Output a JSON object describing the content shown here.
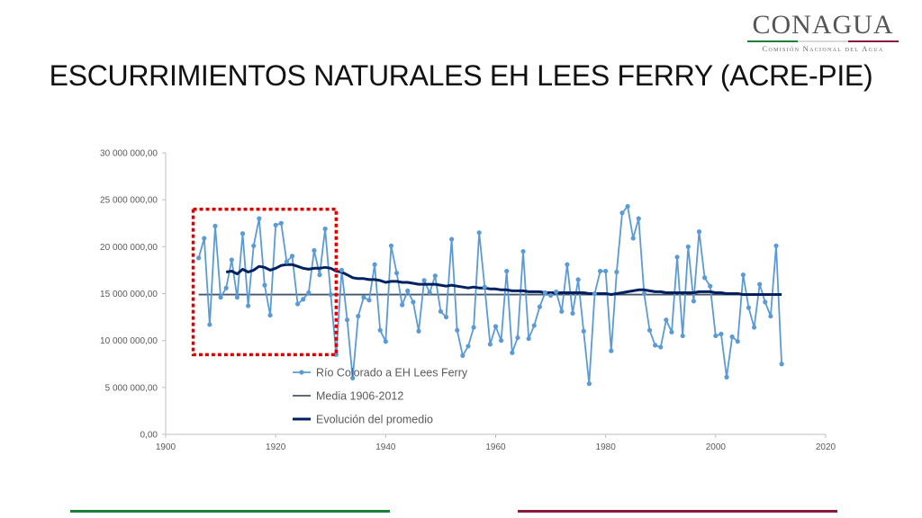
{
  "header": {
    "logo_text": "CONAGUA",
    "logo_subtitle": "Comisión Nacional del Agua",
    "title": "ESCURRIMIENTOS NATURALES EH LEES FERRY (ACRE-PIE)"
  },
  "colors": {
    "series_light": "#5b9bd5",
    "series_mean": "#44546a",
    "series_running": "#002060",
    "highlight_box": "#e00000",
    "green_accent": "#1e7d3b",
    "maroon_accent": "#8b1a3a"
  },
  "chart_data": {
    "type": "line",
    "xlim": [
      1900,
      2020
    ],
    "ylim": [
      0,
      30000000
    ],
    "x_ticks": [
      1900,
      1920,
      1940,
      1960,
      1980,
      2000,
      2020
    ],
    "x_tick_labels": [
      "1900",
      "1920",
      "1940",
      "1960",
      "1980",
      "2000",
      "2020"
    ],
    "y_ticks": [
      0,
      5000000,
      10000000,
      15000000,
      20000000,
      25000000,
      30000000
    ],
    "y_tick_labels": [
      "0,00",
      "5 000 000,00",
      "10 000 000,00",
      "15 000 000,00",
      "20 000 000,00",
      "25 000 000,00",
      "30 000 000,00"
    ],
    "grid": false,
    "legend_position": "inside-bottom-center",
    "highlight": {
      "x_range": [
        1905,
        1931
      ],
      "y_range": [
        8500000,
        24000000
      ],
      "style": "dotted-red-box"
    },
    "series": [
      {
        "name": "Río Colorado a EH Lees Ferry",
        "style": "line-markers",
        "x": [
          1906,
          1907,
          1908,
          1909,
          1910,
          1911,
          1912,
          1913,
          1914,
          1915,
          1916,
          1917,
          1918,
          1919,
          1920,
          1921,
          1922,
          1923,
          1924,
          1925,
          1926,
          1927,
          1928,
          1929,
          1930,
          1931,
          1932,
          1933,
          1934,
          1935,
          1936,
          1937,
          1938,
          1939,
          1940,
          1941,
          1942,
          1943,
          1944,
          1945,
          1946,
          1947,
          1948,
          1949,
          1950,
          1951,
          1952,
          1953,
          1954,
          1955,
          1956,
          1957,
          1958,
          1959,
          1960,
          1961,
          1962,
          1963,
          1964,
          1965,
          1966,
          1967,
          1968,
          1969,
          1970,
          1971,
          1972,
          1973,
          1974,
          1975,
          1976,
          1977,
          1978,
          1979,
          1980,
          1981,
          1982,
          1983,
          1984,
          1985,
          1986,
          1987,
          1988,
          1989,
          1990,
          1991,
          1992,
          1993,
          1994,
          1995,
          1996,
          1997,
          1998,
          1999,
          2000,
          2001,
          2002,
          2003,
          2004,
          2005,
          2006,
          2007,
          2008,
          2009,
          2010,
          2011,
          2012
        ],
        "values": [
          18800000,
          20900000,
          11700000,
          22200000,
          14600000,
          15600000,
          18600000,
          14600000,
          21400000,
          13700000,
          20100000,
          23000000,
          15900000,
          12700000,
          22300000,
          22500000,
          18400000,
          19000000,
          13900000,
          14400000,
          15100000,
          19600000,
          17000000,
          21900000,
          14900000,
          8500000,
          17500000,
          12200000,
          6000000,
          12600000,
          14600000,
          14300000,
          18100000,
          11100000,
          9900000,
          20100000,
          17200000,
          13800000,
          15300000,
          14100000,
          11000000,
          16400000,
          15100000,
          16900000,
          13100000,
          12500000,
          20800000,
          11100000,
          8400000,
          9400000,
          11400000,
          21500000,
          15700000,
          9600000,
          11500000,
          10000000,
          17400000,
          8700000,
          10300000,
          19500000,
          10200000,
          11600000,
          13600000,
          15100000,
          14800000,
          15200000,
          13100000,
          18100000,
          12900000,
          16500000,
          11000000,
          5400000,
          15000000,
          17400000,
          17400000,
          8900000,
          17300000,
          23600000,
          24300000,
          20900000,
          23000000,
          15000000,
          11100000,
          9500000,
          9300000,
          12200000,
          10900000,
          18900000,
          10500000,
          20000000,
          14200000,
          21600000,
          16700000,
          15800000,
          10500000,
          10700000,
          6100000,
          10400000,
          9900000,
          17000000,
          13500000,
          11400000,
          16000000,
          14100000,
          12600000,
          20100000,
          7500000
        ]
      },
      {
        "name": "Media 1906-2012",
        "style": "line",
        "x": [
          1906,
          2012
        ],
        "values": [
          14900000,
          14900000
        ]
      },
      {
        "name": "Evolución del promedio",
        "style": "thick-line",
        "x": [
          1911,
          1912,
          1913,
          1914,
          1915,
          1916,
          1917,
          1918,
          1919,
          1920,
          1921,
          1922,
          1923,
          1924,
          1925,
          1926,
          1927,
          1928,
          1929,
          1930,
          1931,
          1932,
          1933,
          1934,
          1935,
          1936,
          1937,
          1938,
          1939,
          1940,
          1941,
          1942,
          1943,
          1944,
          1945,
          1946,
          1947,
          1948,
          1949,
          1950,
          1951,
          1952,
          1953,
          1954,
          1955,
          1956,
          1957,
          1958,
          1959,
          1960,
          1961,
          1962,
          1963,
          1964,
          1965,
          1966,
          1967,
          1968,
          1969,
          1970,
          1971,
          1972,
          1973,
          1974,
          1975,
          1976,
          1977,
          1978,
          1979,
          1980,
          1981,
          1982,
          1983,
          1984,
          1985,
          1986,
          1987,
          1988,
          1989,
          1990,
          1991,
          1992,
          1993,
          1994,
          1995,
          1996,
          1997,
          1998,
          1999,
          2000,
          2001,
          2002,
          2003,
          2004,
          2005,
          2006,
          2007,
          2008,
          2009,
          2010,
          2011,
          2012
        ],
        "values": [
          17300000,
          17400000,
          17100000,
          17600000,
          17300000,
          17500000,
          17900000,
          17800000,
          17500000,
          17700000,
          18000000,
          18100000,
          18100000,
          17900000,
          17700000,
          17600000,
          17700000,
          17700000,
          17800000,
          17700000,
          17400000,
          17300000,
          17000000,
          16700000,
          16600000,
          16600000,
          16500000,
          16500000,
          16400000,
          16200000,
          16300000,
          16300000,
          16200000,
          16200000,
          16100000,
          16000000,
          16000000,
          16000000,
          16000000,
          15900000,
          15800000,
          15900000,
          15800000,
          15700000,
          15600000,
          15700000,
          15600000,
          15600000,
          15500000,
          15500000,
          15400000,
          15400000,
          15300000,
          15300000,
          15300000,
          15200000,
          15200000,
          15200000,
          15100000,
          15100000,
          15100000,
          15100000,
          15100000,
          15100000,
          15100000,
          15100000,
          15000000,
          15000000,
          15000000,
          15000000,
          14900000,
          15000000,
          15100000,
          15200000,
          15300000,
          15400000,
          15400000,
          15300000,
          15200000,
          15200000,
          15100000,
          15100000,
          15100000,
          15100000,
          15100000,
          15100000,
          15200000,
          15200000,
          15200000,
          15100000,
          15100000,
          15000000,
          15000000,
          15000000,
          14900000,
          14900000,
          14900000,
          14900000,
          14900000,
          14900000,
          14900000,
          14900000
        ]
      }
    ]
  }
}
